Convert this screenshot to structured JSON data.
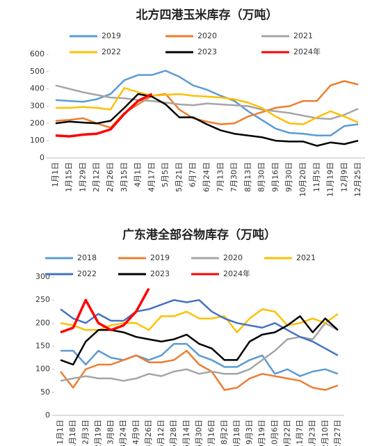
{
  "chart_data": [
    {
      "type": "line",
      "title": "北方四港玉米库存（万吨）",
      "categories": [
        "1月1日",
        "1月15日",
        "1月29日",
        "2月12日",
        "2月26日",
        "3月15日",
        "4月1日",
        "4月17日",
        "5月5日",
        "5月21日",
        "6月7日",
        "6月24日",
        "7月13日",
        "7月30日",
        "8月13日",
        "8月30日",
        "9月16日",
        "9月30日",
        "10月20日",
        "11月5日",
        "11月19日",
        "12月9日",
        "12月25日"
      ],
      "ylim": [
        0,
        600
      ],
      "yticks": [
        0,
        100,
        200,
        300,
        400,
        500,
        600
      ],
      "series": [
        {
          "name": "2019",
          "color": "#5b9bd5",
          "values": [
            335,
            330,
            325,
            340,
            370,
            450,
            480,
            480,
            505,
            470,
            420,
            395,
            360,
            330,
            270,
            220,
            170,
            145,
            140,
            130,
            130,
            185,
            195
          ]
        },
        {
          "name": "2020",
          "color": "#ed7d31",
          "values": [
            215,
            220,
            230,
            200,
            175,
            260,
            310,
            360,
            370,
            280,
            230,
            210,
            195,
            200,
            240,
            265,
            290,
            300,
            330,
            330,
            420,
            445,
            425
          ]
        },
        {
          "name": "2021",
          "color": "#a5a5a5",
          "values": [
            420,
            400,
            380,
            365,
            350,
            345,
            335,
            330,
            320,
            310,
            305,
            315,
            310,
            305,
            300,
            280,
            270,
            260,
            245,
            230,
            225,
            250,
            285
          ]
        },
        {
          "name": "2022",
          "color": "#ffc000",
          "values": [
            290,
            290,
            295,
            290,
            280,
            405,
            380,
            360,
            365,
            370,
            360,
            355,
            350,
            340,
            320,
            290,
            240,
            200,
            195,
            235,
            270,
            240,
            205
          ]
        },
        {
          "name": "2023",
          "color": "#000000",
          "values": [
            200,
            210,
            205,
            200,
            215,
            290,
            370,
            355,
            310,
            235,
            235,
            195,
            160,
            140,
            130,
            120,
            100,
            95,
            95,
            70,
            90,
            80,
            100
          ]
        },
        {
          "name": "2024年",
          "color": "#ff0000",
          "values": [
            130,
            125,
            135,
            140,
            165,
            255,
            330,
            370,
            null,
            null,
            null,
            null,
            null,
            null,
            null,
            null,
            null,
            null,
            null,
            null,
            null,
            null,
            null
          ]
        }
      ]
    },
    {
      "type": "line",
      "title": "广东港全部谷物库存（万吨）",
      "categories": [
        "1月1日",
        "1月18日",
        "2月3日",
        "2月19日",
        "3月8日",
        "3月24日",
        "4月9日",
        "4月26日",
        "5月12日",
        "5月28日",
        "6月14日",
        "6月30日",
        "7月16日",
        "8月2日",
        "8月18日",
        "9月3日",
        "9月19日",
        "10月6日",
        "10月22日",
        "11月7日",
        "11月23日",
        "12月10日",
        "12月27日"
      ],
      "ylim": [
        0,
        300
      ],
      "yticks": [
        0,
        50,
        100,
        150,
        200,
        250,
        300
      ],
      "series": [
        {
          "name": "2018",
          "color": "#5b9bd5",
          "values": [
            140,
            140,
            110,
            140,
            125,
            120,
            130,
            120,
            130,
            155,
            155,
            130,
            120,
            105,
            105,
            120,
            130,
            90,
            100,
            85,
            95,
            100,
            90
          ]
        },
        {
          "name": "2019",
          "color": "#ed7d31",
          "values": [
            95,
            60,
            100,
            110,
            110,
            120,
            130,
            115,
            115,
            120,
            140,
            110,
            95,
            55,
            60,
            80,
            90,
            85,
            80,
            75,
            60,
            55,
            65
          ]
        },
        {
          "name": "2020",
          "color": "#a5a5a5",
          "values": [
            75,
            80,
            85,
            80,
            80,
            75,
            80,
            90,
            85,
            95,
            100,
            90,
            95,
            90,
            90,
            100,
            120,
            140,
            165,
            170,
            165,
            200,
            185
          ]
        },
        {
          "name": "2021",
          "color": "#ffc000",
          "values": [
            200,
            195,
            185,
            185,
            195,
            200,
            200,
            185,
            215,
            215,
            225,
            210,
            210,
            215,
            180,
            210,
            230,
            225,
            195,
            200,
            210,
            200,
            220
          ]
        },
        {
          "name": "2022",
          "color": "#4472c4",
          "values": [
            230,
            210,
            200,
            220,
            205,
            205,
            225,
            230,
            240,
            250,
            245,
            250,
            225,
            210,
            200,
            195,
            190,
            200,
            185,
            170,
            160,
            145,
            130
          ]
        },
        {
          "name": "2023",
          "color": "#000000",
          "values": [
            120,
            110,
            160,
            185,
            185,
            180,
            170,
            165,
            160,
            165,
            175,
            155,
            145,
            120,
            120,
            160,
            175,
            180,
            195,
            215,
            180,
            210,
            185
          ]
        },
        {
          "name": "2024年",
          "color": "#ff0000",
          "values": [
            180,
            190,
            250,
            200,
            185,
            195,
            225,
            275,
            null,
            null,
            null,
            null,
            null,
            null,
            null,
            null,
            null,
            null,
            null,
            null,
            null,
            null,
            null
          ]
        }
      ]
    }
  ]
}
